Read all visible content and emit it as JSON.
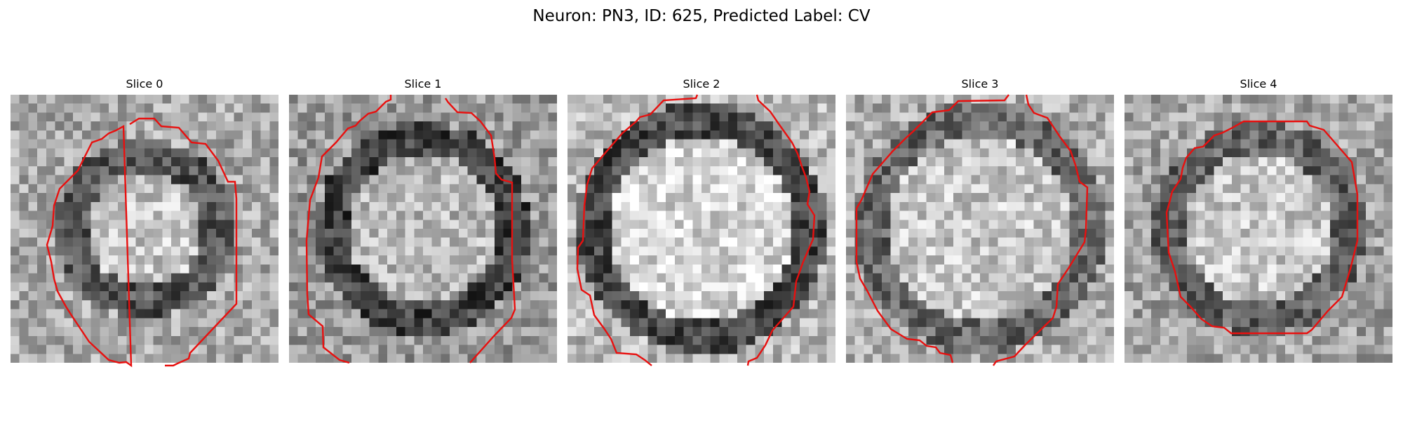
{
  "figure": {
    "title": "Neuron: PN3, ID: 625, Predicted Label: CV"
  },
  "contour_color": "#e8100f",
  "panels": [
    {
      "title": "Slice 0",
      "annulus": {
        "rim_intensity": 0.33,
        "center_intensity": 0.78,
        "background_intensity": 0.66
      }
    },
    {
      "title": "Slice 1",
      "annulus": {
        "rim_intensity": 0.25,
        "center_intensity": 0.72,
        "background_intensity": 0.6
      }
    },
    {
      "title": "Slice 2",
      "annulus": {
        "rim_intensity": 0.28,
        "center_intensity": 0.84,
        "background_intensity": 0.72
      }
    },
    {
      "title": "Slice 3",
      "annulus": {
        "rim_intensity": 0.4,
        "center_intensity": 0.78,
        "background_intensity": 0.68
      }
    },
    {
      "title": "Slice 4",
      "annulus": {
        "rim_intensity": 0.38,
        "center_intensity": 0.78,
        "background_intensity": 0.64
      }
    }
  ]
}
